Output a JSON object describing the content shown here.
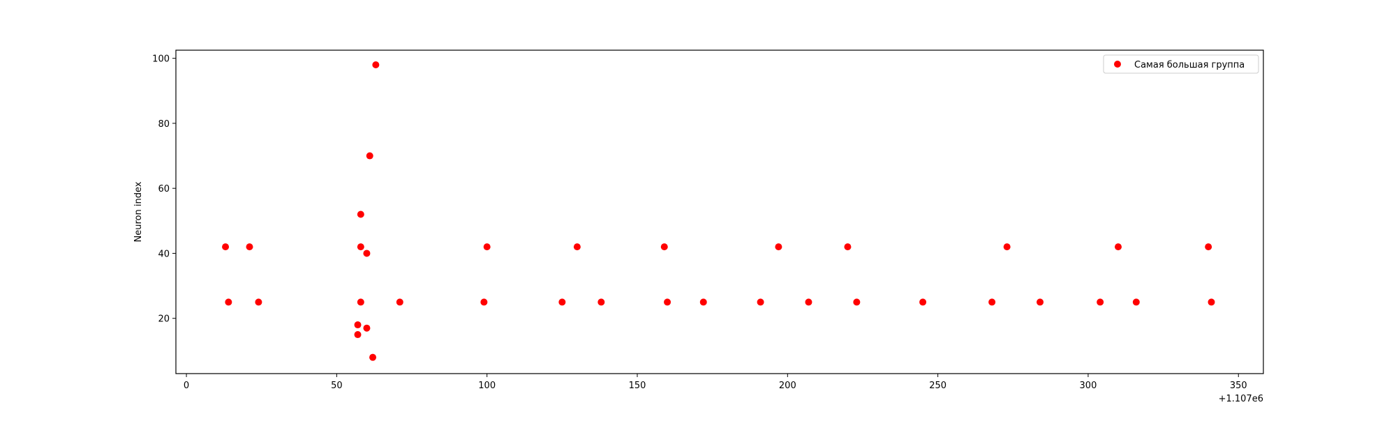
{
  "chart_data": {
    "type": "scatter",
    "title": "",
    "xlabel": "",
    "ylabel": "Neuron index",
    "x_offset_label": "+1.107e6",
    "x_offset": 1107000,
    "xlim": [
      1106996.5,
      1107358.3
    ],
    "ylim": [
      3,
      102.5
    ],
    "xticks": [
      0,
      50,
      100,
      150,
      200,
      250,
      300,
      350
    ],
    "yticks": [
      20,
      40,
      60,
      80,
      100
    ],
    "grid": false,
    "legend_position": "upper right",
    "series": [
      {
        "name": "Самая большая группа",
        "color": "#ff0000",
        "points": [
          {
            "x": 1107013,
            "y": 42
          },
          {
            "x": 1107014,
            "y": 25
          },
          {
            "x": 1107021,
            "y": 42
          },
          {
            "x": 1107024,
            "y": 25
          },
          {
            "x": 1107057,
            "y": 18
          },
          {
            "x": 1107057,
            "y": 15
          },
          {
            "x": 1107058,
            "y": 52
          },
          {
            "x": 1107058,
            "y": 42
          },
          {
            "x": 1107058,
            "y": 25
          },
          {
            "x": 1107060,
            "y": 40
          },
          {
            "x": 1107060,
            "y": 17
          },
          {
            "x": 1107061,
            "y": 70
          },
          {
            "x": 1107062,
            "y": 8
          },
          {
            "x": 1107063,
            "y": 98
          },
          {
            "x": 1107071,
            "y": 25
          },
          {
            "x": 1107099,
            "y": 25
          },
          {
            "x": 1107100,
            "y": 42
          },
          {
            "x": 1107125,
            "y": 25
          },
          {
            "x": 1107130,
            "y": 42
          },
          {
            "x": 1107138,
            "y": 25
          },
          {
            "x": 1107159,
            "y": 42
          },
          {
            "x": 1107160,
            "y": 25
          },
          {
            "x": 1107172,
            "y": 25
          },
          {
            "x": 1107191,
            "y": 25
          },
          {
            "x": 1107197,
            "y": 42
          },
          {
            "x": 1107207,
            "y": 25
          },
          {
            "x": 1107220,
            "y": 42
          },
          {
            "x": 1107223,
            "y": 25
          },
          {
            "x": 1107245,
            "y": 25
          },
          {
            "x": 1107268,
            "y": 25
          },
          {
            "x": 1107273,
            "y": 42
          },
          {
            "x": 1107284,
            "y": 25
          },
          {
            "x": 1107304,
            "y": 25
          },
          {
            "x": 1107310,
            "y": 42
          },
          {
            "x": 1107316,
            "y": 25
          },
          {
            "x": 1107340,
            "y": 42
          },
          {
            "x": 1107341,
            "y": 25
          }
        ]
      }
    ]
  }
}
